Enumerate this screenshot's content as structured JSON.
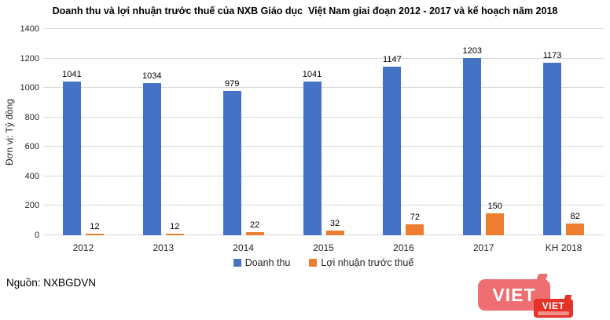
{
  "title": "Doanh thu và lợi nhuận trước thuế của NXB Giáo dục  Việt Nam giai đoạn 2012 - 2017 và kế hoạch năm 2018",
  "y_axis": {
    "unit_label": "Đơn vị: Tỷ đồng",
    "ticks": [
      0,
      200,
      400,
      600,
      800,
      1000,
      1200,
      1400
    ]
  },
  "chart_data": {
    "type": "bar",
    "title": "Doanh thu và lợi nhuận trước thuế của NXB Giáo dục  Việt Nam giai đoạn 2012 - 2017 và kế hoạch năm 2018",
    "categories": [
      "2012",
      "2013",
      "2014",
      "2015",
      "2016",
      "2017",
      "KH 2018"
    ],
    "series": [
      {
        "name": "Doanh thu",
        "color": "#4472C4",
        "values": [
          1041,
          1034,
          979,
          1041,
          1147,
          1203,
          1173
        ]
      },
      {
        "name": "Lợi nhuận trước thuế",
        "color": "#ED7D31",
        "values": [
          12,
          12,
          22,
          32,
          72,
          150,
          82
        ]
      }
    ],
    "xlabel": "",
    "ylabel": "Đơn vị: Tỷ đồng",
    "ylim": [
      0,
      1400
    ],
    "grid": true,
    "gridline_color": "#D9D9D9",
    "legend_position": "bottom",
    "data_labels": true
  },
  "source": "Nguồn: NXBGDVN",
  "logo": {
    "main_text": "VIET",
    "badge_text": "VIET",
    "main_color": "#EE6E71",
    "badge_color": "#E6332A"
  }
}
